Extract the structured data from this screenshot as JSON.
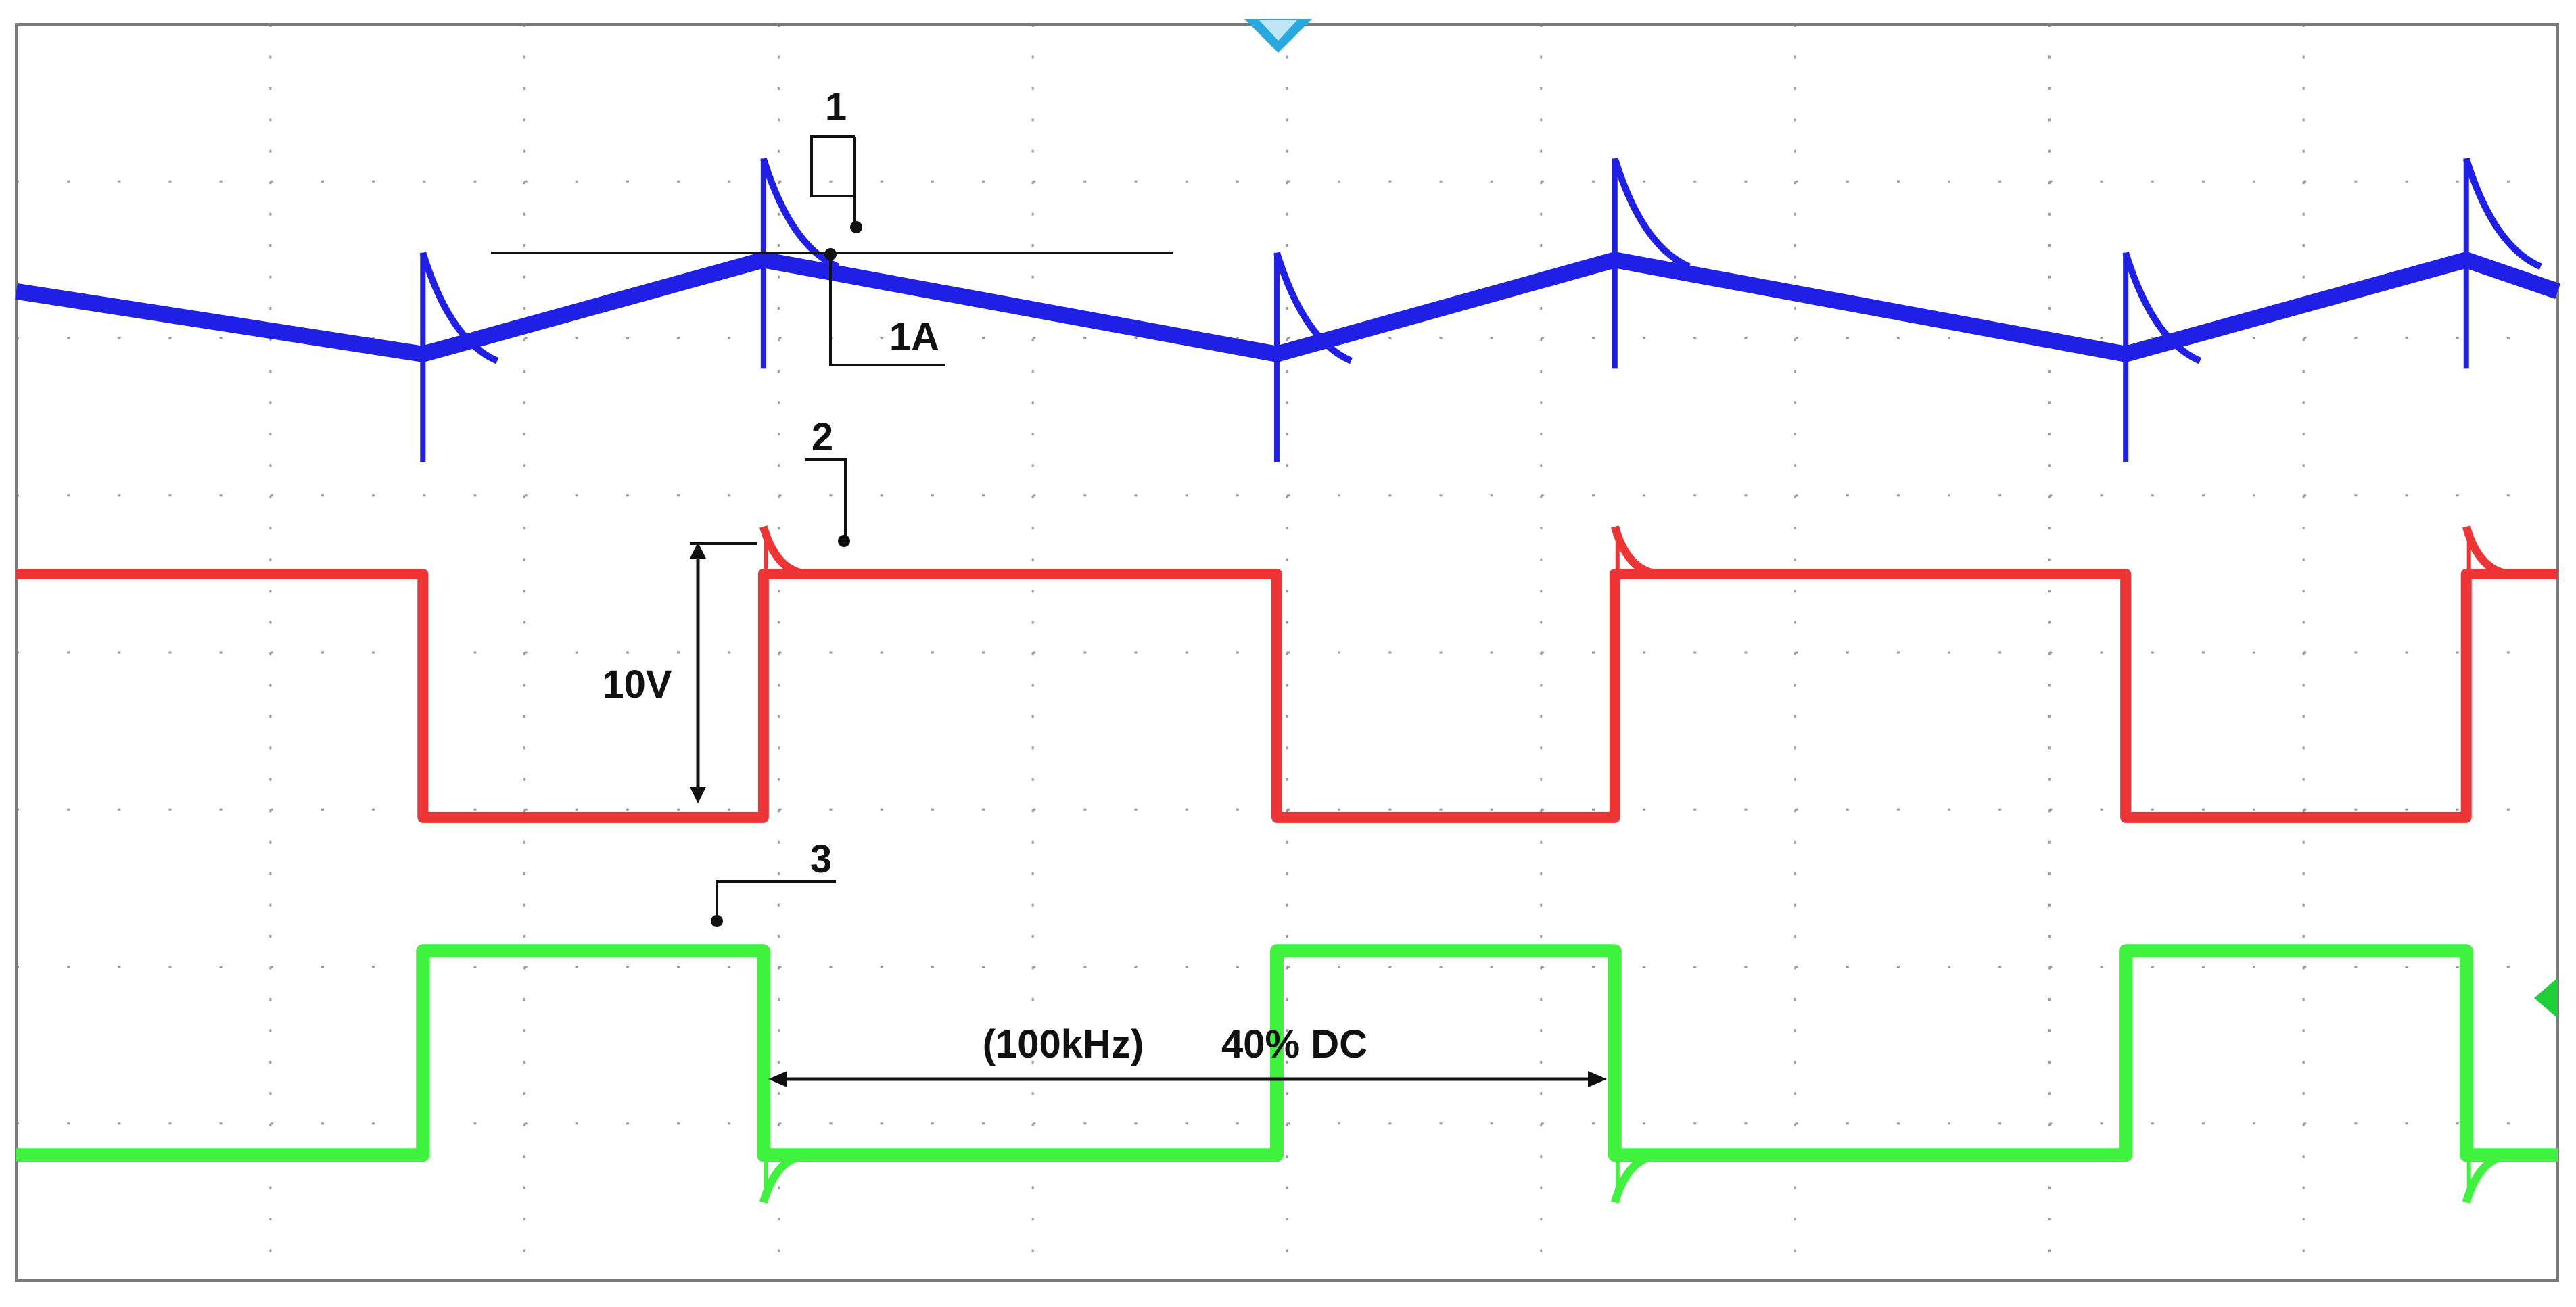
{
  "chart_data": {
    "type": "line",
    "title": "",
    "xlabel": "",
    "ylabel": "",
    "grid": true,
    "grid_divisions": {
      "x": 10,
      "y": 8
    },
    "x": [
      0.0,
      1.6,
      2.94,
      4.96,
      6.29,
      8.3,
      9.64,
      10.0
    ],
    "series": [
      {
        "name": "1",
        "unit": "A",
        "scale": "1A",
        "values": [
          6.3,
          5.9,
          6.5,
          5.9,
          6.5,
          5.9,
          6.5,
          6.3
        ]
      },
      {
        "name": "2",
        "unit": "V",
        "scale": "10V",
        "values": [
          4.5,
          2.95,
          4.5,
          2.95,
          4.5,
          2.95,
          4.5,
          4.5
        ]
      },
      {
        "name": "3",
        "values": [
          0.8,
          2.1,
          0.8,
          2.1,
          0.8,
          2.1,
          0.8,
          0.8
        ]
      }
    ],
    "annotations": {
      "label_1": "1",
      "label_2": "2",
      "label_3": "3",
      "current_scale": "1A",
      "voltage_scale": "10V",
      "frequency": "(100kHz)",
      "duty_cycle": "40% DC"
    },
    "colors": {
      "ch1": "#1f1fe6",
      "ch2": "#ee3535",
      "ch3": "#3ef23e",
      "grid": "#9a9a9a",
      "trigger_marker": "#29a8e0",
      "level_marker": "#1fcf3a",
      "annotation": "#111111"
    }
  }
}
